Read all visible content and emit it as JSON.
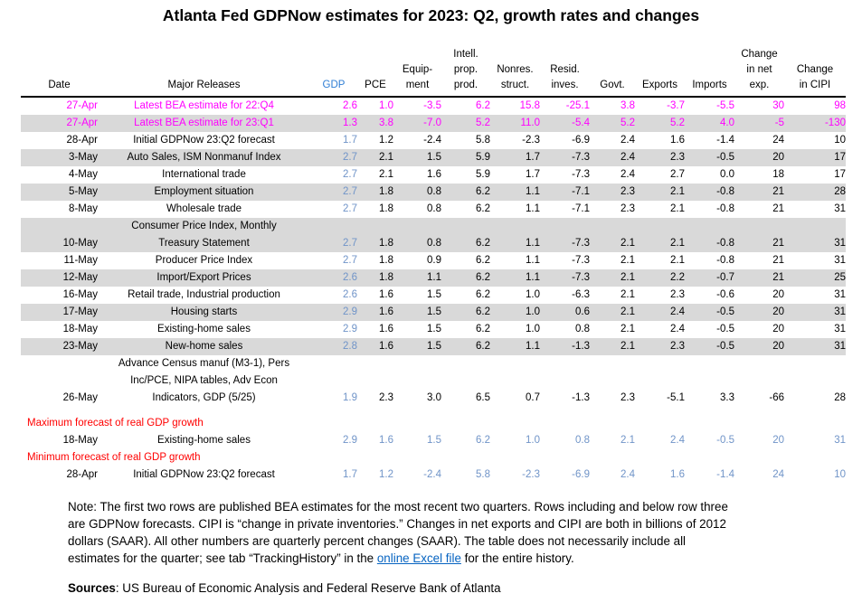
{
  "title": "Atlanta Fed GDPNow estimates for 2023: Q2, growth rates and changes",
  "colors": {
    "magenta": "#FF00FF",
    "gdp_header_blue": "#2F7ED4",
    "value_blue": "#7094C8",
    "label_red": "#FF0000",
    "link_blue": "#0563C1",
    "row_stripe": "#D9D9D9"
  },
  "table": {
    "columns": [
      {
        "key": "date",
        "lines": [
          "Date"
        ]
      },
      {
        "key": "major_releases",
        "lines": [
          "Major Releases"
        ]
      },
      {
        "key": "gdp",
        "lines": [
          "GDP"
        ]
      },
      {
        "key": "pce",
        "lines": [
          "PCE"
        ]
      },
      {
        "key": "equipment",
        "lines": [
          "Equip-",
          "ment"
        ]
      },
      {
        "key": "intell_prop_prod",
        "lines": [
          "Intell.",
          "prop.",
          "prod."
        ]
      },
      {
        "key": "nonres_struct",
        "lines": [
          "Nonres.",
          "struct."
        ]
      },
      {
        "key": "resid_inves",
        "lines": [
          "Resid.",
          "inves."
        ]
      },
      {
        "key": "govt",
        "lines": [
          "Govt."
        ]
      },
      {
        "key": "exports",
        "lines": [
          "Exports"
        ]
      },
      {
        "key": "imports",
        "lines": [
          "Imports"
        ]
      },
      {
        "key": "change_net_exp",
        "lines": [
          "Change",
          "in net",
          "exp."
        ]
      },
      {
        "key": "change_cipi",
        "lines": [
          "Change",
          "in CIPI"
        ]
      }
    ],
    "rows": [
      {
        "date": "27-Apr",
        "release": [
          "Latest BEA estimate for 22:Q4"
        ],
        "values": [
          "2.6",
          "1.0",
          "-3.5",
          "6.2",
          "15.8",
          "-25.1",
          "3.8",
          "-3.7",
          "-5.5",
          "30",
          "98"
        ],
        "color": "magenta",
        "shaded": false
      },
      {
        "date": "27-Apr",
        "release": [
          "Latest BEA estimate for 23:Q1"
        ],
        "values": [
          "1.3",
          "3.8",
          "-7.0",
          "5.2",
          "11.0",
          "-5.4",
          "5.2",
          "5.2",
          "4.0",
          "-5",
          "-130"
        ],
        "color": "magenta",
        "shaded": true
      },
      {
        "date": "28-Apr",
        "release": [
          "Initial GDPNow 23:Q2 forecast"
        ],
        "values": [
          "1.7",
          "1.2",
          "-2.4",
          "5.8",
          "-2.3",
          "-6.9",
          "2.4",
          "1.6",
          "-1.4",
          "24",
          "10"
        ],
        "color": "black",
        "shaded": false
      },
      {
        "date": "3-May",
        "release": [
          "Auto Sales, ISM Nonmanuf Index"
        ],
        "values": [
          "2.7",
          "2.1",
          "1.5",
          "5.9",
          "1.7",
          "-7.3",
          "2.4",
          "2.3",
          "-0.5",
          "20",
          "17"
        ],
        "color": "black",
        "shaded": true
      },
      {
        "date": "4-May",
        "release": [
          "International trade"
        ],
        "values": [
          "2.7",
          "2.1",
          "1.6",
          "5.9",
          "1.7",
          "-7.3",
          "2.4",
          "2.7",
          "0.0",
          "18",
          "17"
        ],
        "color": "black",
        "shaded": false
      },
      {
        "date": "5-May",
        "release": [
          "Employment situation"
        ],
        "values": [
          "2.7",
          "1.8",
          "0.8",
          "6.2",
          "1.1",
          "-7.1",
          "2.3",
          "2.1",
          "-0.8",
          "21",
          "28"
        ],
        "color": "black",
        "shaded": true
      },
      {
        "date": "8-May",
        "release": [
          "Wholesale trade"
        ],
        "values": [
          "2.7",
          "1.8",
          "0.8",
          "6.2",
          "1.1",
          "-7.1",
          "2.3",
          "2.1",
          "-0.8",
          "21",
          "31"
        ],
        "color": "black",
        "shaded": false
      },
      {
        "date": "10-May",
        "release": [
          "Consumer Price Index, Monthly",
          "Treasury Statement"
        ],
        "values": [
          "2.7",
          "1.8",
          "0.8",
          "6.2",
          "1.1",
          "-7.3",
          "2.1",
          "2.1",
          "-0.8",
          "21",
          "31"
        ],
        "color": "black",
        "shaded": true
      },
      {
        "date": "11-May",
        "release": [
          "Producer Price Index"
        ],
        "values": [
          "2.7",
          "1.8",
          "0.9",
          "6.2",
          "1.1",
          "-7.3",
          "2.1",
          "2.1",
          "-0.8",
          "21",
          "31"
        ],
        "color": "black",
        "shaded": false
      },
      {
        "date": "12-May",
        "release": [
          "Import/Export Prices"
        ],
        "values": [
          "2.6",
          "1.8",
          "1.1",
          "6.2",
          "1.1",
          "-7.3",
          "2.1",
          "2.2",
          "-0.7",
          "21",
          "25"
        ],
        "color": "black",
        "shaded": true
      },
      {
        "date": "16-May",
        "release": [
          "Retail trade, Industrial production"
        ],
        "values": [
          "2.6",
          "1.6",
          "1.5",
          "6.2",
          "1.0",
          "-6.3",
          "2.1",
          "2.3",
          "-0.6",
          "20",
          "31"
        ],
        "color": "black",
        "shaded": false
      },
      {
        "date": "17-May",
        "release": [
          "Housing starts"
        ],
        "values": [
          "2.9",
          "1.6",
          "1.5",
          "6.2",
          "1.0",
          "0.6",
          "2.1",
          "2.4",
          "-0.5",
          "20",
          "31"
        ],
        "color": "black",
        "shaded": true
      },
      {
        "date": "18-May",
        "release": [
          "Existing-home sales"
        ],
        "values": [
          "2.9",
          "1.6",
          "1.5",
          "6.2",
          "1.0",
          "0.8",
          "2.1",
          "2.4",
          "-0.5",
          "20",
          "31"
        ],
        "color": "black",
        "shaded": false
      },
      {
        "date": "23-May",
        "release": [
          "New-home sales"
        ],
        "values": [
          "2.8",
          "1.6",
          "1.5",
          "6.2",
          "1.1",
          "-1.3",
          "2.1",
          "2.3",
          "-0.5",
          "20",
          "31"
        ],
        "color": "black",
        "shaded": true
      },
      {
        "date": "26-May",
        "release": [
          "Advance Census manuf (M3-1), Pers",
          "Inc/PCE, NIPA tables, Adv Econ",
          "Indicators, GDP (5/25)"
        ],
        "values": [
          "1.9",
          "2.3",
          "3.0",
          "6.5",
          "0.7",
          "-1.3",
          "2.3",
          "-5.1",
          "3.3",
          "-66",
          "28"
        ],
        "color": "black",
        "shaded": false
      }
    ],
    "footer_sections": [
      {
        "label": "Maximum forecast of real GDP growth",
        "row": {
          "date": "18-May",
          "release": [
            "Existing-home sales"
          ],
          "values": [
            "2.9",
            "1.6",
            "1.5",
            "6.2",
            "1.0",
            "0.8",
            "2.1",
            "2.4",
            "-0.5",
            "20",
            "31"
          ]
        }
      },
      {
        "label": "Minimum forecast of real GDP growth",
        "row": {
          "date": "28-Apr",
          "release": [
            "Initial GDPNow 23:Q2 forecast"
          ],
          "values": [
            "1.7",
            "1.2",
            "-2.4",
            "5.8",
            "-2.3",
            "-6.9",
            "2.4",
            "1.6",
            "-1.4",
            "24",
            "10"
          ]
        }
      }
    ]
  },
  "note": {
    "lines": [
      "Note: The first two rows are published BEA estimates for the most recent two quarters. Rows including and below row three",
      "are GDPNow forecasts. CIPI is “change in private inventories.” Changes in net exports and CIPI are both in billions of 2012",
      "dollars (SAAR). All other numbers are quarterly percent changes (SAAR). The table does not necessarily include all"
    ],
    "last_line": {
      "before": "estimates for the quarter; see tab “TrackingHistory” in the ",
      "link": "online Excel file",
      "after": " for the entire history."
    }
  },
  "sources": {
    "label": "Sources",
    "text": ": US Bureau of Economic Analysis and Federal Reserve Bank of Atlanta"
  }
}
